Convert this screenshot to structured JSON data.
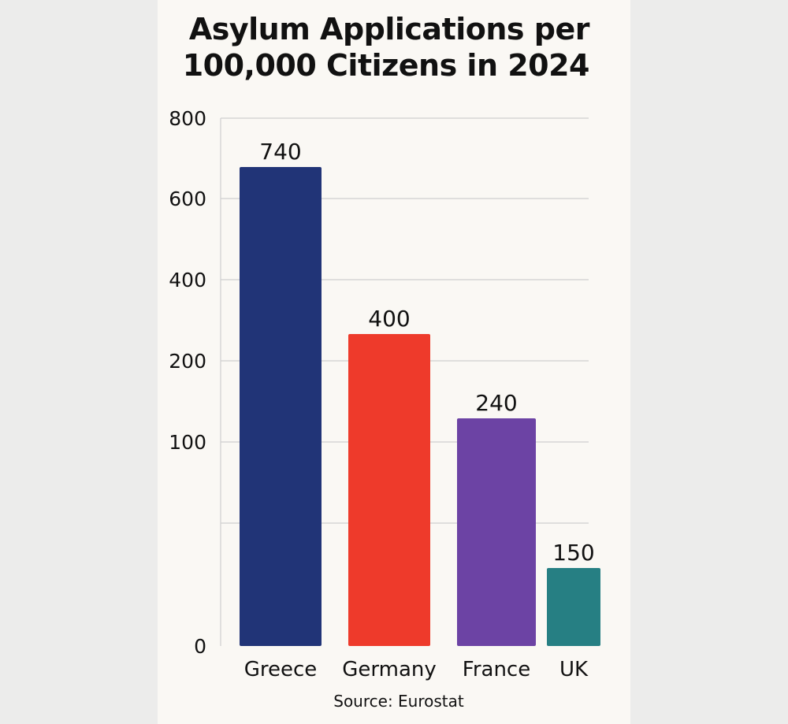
{
  "title_lines": [
    "Asylum Applications per",
    "100,000 Citizens in 2024"
  ],
  "source": "Source: Eurostat",
  "chart_data": {
    "type": "bar",
    "categories": [
      "Greece",
      "Germany",
      "France",
      "UK"
    ],
    "values": [
      740,
      400,
      240,
      150
    ],
    "data_labels": [
      "740",
      "400",
      "240",
      "150"
    ],
    "colors": [
      "#213477",
      "#ee3a2b",
      "#6c43a4",
      "#267f83"
    ],
    "y_ticks": [
      "800",
      "600",
      "400",
      "200",
      "100",
      "",
      "0"
    ],
    "title": "Asylum Applications per 100,000 Citizens in 2024",
    "xlabel": "",
    "ylabel": "",
    "grid": true
  }
}
